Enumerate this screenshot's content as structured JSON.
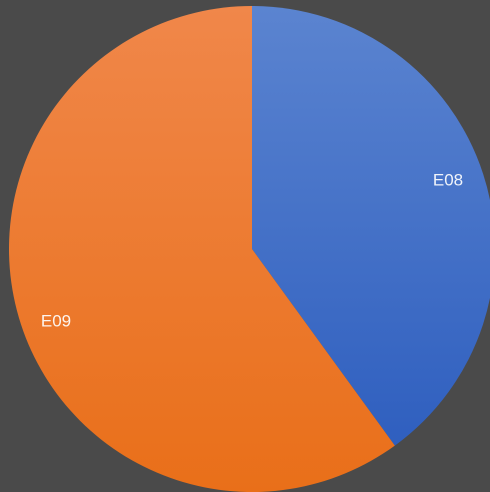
{
  "colors": {
    "background": "#4a4a4a",
    "series": [
      "#4472c4",
      "#ed7d31"
    ]
  },
  "chart_data": {
    "type": "pie",
    "categories": [
      "E08",
      "E09"
    ],
    "values": [
      40,
      60
    ],
    "start_angle_deg": 0,
    "direction": "clockwise",
    "data_labels": [
      "E08",
      "E09"
    ],
    "legend": "none"
  }
}
